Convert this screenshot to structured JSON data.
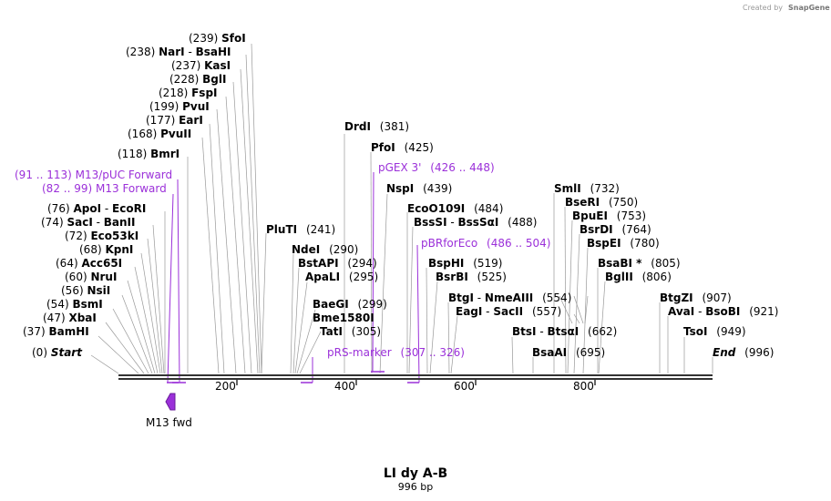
{
  "credit": "Created by",
  "brand": "SnapGene",
  "title": "LI dy A-B",
  "subtitle": "996 bp",
  "ticks": [
    "200",
    "400",
    "600",
    "800"
  ],
  "feature_label": "M13 fwd",
  "sites": [
    {
      "pos": "(239)",
      "name": "SfoI",
      "extra": ""
    },
    {
      "pos": "(238)",
      "name": "NarI",
      "extra": "BsaHI"
    },
    {
      "pos": "(237)",
      "name": "KasI",
      "extra": ""
    },
    {
      "pos": "(228)",
      "name": "BglI",
      "extra": ""
    },
    {
      "pos": "(218)",
      "name": "FspI",
      "extra": ""
    },
    {
      "pos": "(199)",
      "name": "PvuI",
      "extra": ""
    },
    {
      "pos": "(177)",
      "name": "EarI",
      "extra": ""
    },
    {
      "pos": "(168)",
      "name": "PvuII",
      "extra": ""
    },
    {
      "pos": "(118)",
      "name": "BmrI",
      "extra": ""
    },
    {
      "pos": "(76)",
      "name": "ApoI",
      "extra": "EcoRI"
    },
    {
      "pos": "(74)",
      "name": "SacI",
      "extra": "BanII"
    },
    {
      "pos": "(72)",
      "name": "Eco53kI",
      "extra": ""
    },
    {
      "pos": "(68)",
      "name": "KpnI",
      "extra": ""
    },
    {
      "pos": "(64)",
      "name": "Acc65I",
      "extra": ""
    },
    {
      "pos": "(60)",
      "name": "NruI",
      "extra": ""
    },
    {
      "pos": "(56)",
      "name": "NsiI",
      "extra": ""
    },
    {
      "pos": "(54)",
      "name": "BsmI",
      "extra": ""
    },
    {
      "pos": "(47)",
      "name": "XbaI",
      "extra": ""
    },
    {
      "pos": "(37)",
      "name": "BamHI",
      "extra": ""
    },
    {
      "pos": "(0)",
      "name": "Start",
      "extra": ""
    },
    {
      "pos": "(381)",
      "name": "DrdI",
      "extra": ""
    },
    {
      "pos": "(425)",
      "name": "PfoI",
      "extra": ""
    },
    {
      "pos": "(439)",
      "name": "NspI",
      "extra": ""
    },
    {
      "pos": "(484)",
      "name": "EcoO109I",
      "extra": ""
    },
    {
      "pos": "(488)",
      "name": "BssSI",
      "extra": "BssSαI"
    },
    {
      "pos": "(241)",
      "name": "PluTI",
      "extra": ""
    },
    {
      "pos": "(290)",
      "name": "NdeI",
      "extra": ""
    },
    {
      "pos": "(294)",
      "name": "BstAPI",
      "extra": ""
    },
    {
      "pos": "(295)",
      "name": "ApaLI",
      "extra": ""
    },
    {
      "pos": "(299)",
      "name": "BaeGI",
      "extra": ""
    },
    {
      "pos": "",
      "name": "Bme1580I",
      "extra": ""
    },
    {
      "pos": "(305)",
      "name": "TatI",
      "extra": ""
    },
    {
      "pos": "(519)",
      "name": "BspHI",
      "extra": ""
    },
    {
      "pos": "(525)",
      "name": "BsrBI",
      "extra": ""
    },
    {
      "pos": "(554)",
      "name": "BtgI",
      "extra": "NmeAIII"
    },
    {
      "pos": "(557)",
      "name": "EagI",
      "extra": "SacII"
    },
    {
      "pos": "(662)",
      "name": "BtsI",
      "extra": "BtsαI"
    },
    {
      "pos": "(695)",
      "name": "BsaAI",
      "extra": ""
    },
    {
      "pos": "(732)",
      "name": "SmlI",
      "extra": ""
    },
    {
      "pos": "(750)",
      "name": "BseRI",
      "extra": ""
    },
    {
      "pos": "(753)",
      "name": "BpuEI",
      "extra": ""
    },
    {
      "pos": "(764)",
      "name": "BsrDI",
      "extra": ""
    },
    {
      "pos": "(780)",
      "name": "BspEI",
      "extra": ""
    },
    {
      "pos": "(805)",
      "name": "BsaBI *",
      "extra": ""
    },
    {
      "pos": "(806)",
      "name": "BglII",
      "extra": ""
    },
    {
      "pos": "(907)",
      "name": "BtgZI",
      "extra": ""
    },
    {
      "pos": "(921)",
      "name": "AvaI",
      "extra": "BsoBI"
    },
    {
      "pos": "(949)",
      "name": "TsoI",
      "extra": ""
    },
    {
      "pos": "(996)",
      "name": "End",
      "extra": ""
    }
  ],
  "primers": [
    {
      "range": "(91 .. 113)",
      "name": "M13/pUC Forward"
    },
    {
      "range": "(82 .. 99)",
      "name": "M13 Forward"
    },
    {
      "name": "pGEX 3'",
      "range": "(426 .. 448)"
    },
    {
      "name": "pBRforEco",
      "range": "(486 .. 504)"
    },
    {
      "name": "pRS-marker",
      "range": "(307 .. 326)"
    }
  ],
  "colors": {
    "primer": "#9b30d9",
    "seq": "#333333"
  }
}
